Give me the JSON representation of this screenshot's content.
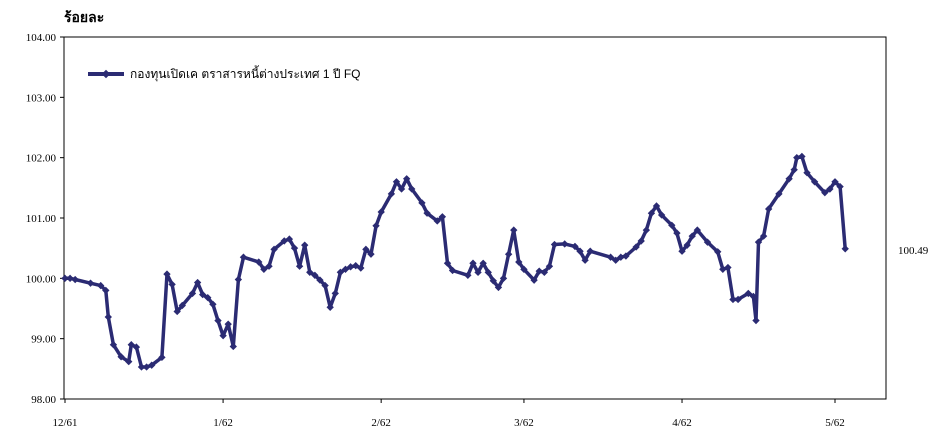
{
  "chart_data": {
    "type": "line",
    "ylabel": "ร้อยละ",
    "ylim": [
      98.0,
      104.0
    ],
    "yticks": [
      "104.00",
      "103.00",
      "102.00",
      "101.00",
      "100.00",
      "99.00",
      "98.00"
    ],
    "xlim": [
      0,
      161
    ],
    "xticks": [
      {
        "pos": 0,
        "label": "12/61"
      },
      {
        "pos": 31,
        "label": "1/62"
      },
      {
        "pos": 62,
        "label": "2/62"
      },
      {
        "pos": 90,
        "label": "3/62"
      },
      {
        "pos": 121,
        "label": "4/62"
      },
      {
        "pos": 151,
        "label": "5/62"
      }
    ],
    "grid": false,
    "legend_position": "top-left",
    "end_label": "100.49",
    "line_color": "#2b2b73",
    "series": [
      {
        "name": "กองทุนเปิดเค ตราสารหนี้ต่างประเทศ 1 ปี FQ",
        "points": [
          [
            0,
            100.0
          ],
          [
            1,
            100.0
          ],
          [
            2,
            99.98
          ],
          [
            5,
            99.92
          ],
          [
            7,
            99.88
          ],
          [
            8,
            99.8
          ],
          [
            8.5,
            99.36
          ],
          [
            9.5,
            98.9
          ],
          [
            11,
            98.7
          ],
          [
            12.5,
            98.62
          ],
          [
            13,
            98.9
          ],
          [
            14,
            98.86
          ],
          [
            15,
            98.53
          ],
          [
            16,
            98.53
          ],
          [
            17,
            98.56
          ],
          [
            19,
            98.69
          ],
          [
            20,
            100.07
          ],
          [
            21,
            99.9
          ],
          [
            22,
            99.45
          ],
          [
            23,
            99.55
          ],
          [
            25,
            99.75
          ],
          [
            26,
            99.93
          ],
          [
            27,
            99.73
          ],
          [
            28,
            99.68
          ],
          [
            29,
            99.57
          ],
          [
            30,
            99.3
          ],
          [
            31,
            99.05
          ],
          [
            32,
            99.24
          ],
          [
            33,
            98.87
          ],
          [
            34,
            99.98
          ],
          [
            35,
            100.35
          ],
          [
            38,
            100.27
          ],
          [
            39,
            100.15
          ],
          [
            40,
            100.2
          ],
          [
            41,
            100.48
          ],
          [
            43,
            100.62
          ],
          [
            44,
            100.65
          ],
          [
            45,
            100.5
          ],
          [
            46,
            100.2
          ],
          [
            47,
            100.55
          ],
          [
            48,
            100.1
          ],
          [
            49,
            100.05
          ],
          [
            50,
            99.97
          ],
          [
            51,
            99.88
          ],
          [
            52,
            99.52
          ],
          [
            53,
            99.75
          ],
          [
            54,
            100.1
          ],
          [
            55,
            100.15
          ],
          [
            56,
            100.19
          ],
          [
            57,
            100.21
          ],
          [
            58,
            100.17
          ],
          [
            59,
            100.48
          ],
          [
            60,
            100.4
          ],
          [
            61,
            100.87
          ],
          [
            62,
            101.1
          ],
          [
            64,
            101.4
          ],
          [
            65,
            101.6
          ],
          [
            66,
            101.48
          ],
          [
            67,
            101.65
          ],
          [
            68,
            101.48
          ],
          [
            70,
            101.25
          ],
          [
            71,
            101.08
          ],
          [
            73,
            100.95
          ],
          [
            74,
            101.02
          ],
          [
            75,
            100.25
          ],
          [
            76,
            100.13
          ],
          [
            79,
            100.05
          ],
          [
            80,
            100.25
          ],
          [
            81,
            100.1
          ],
          [
            82,
            100.25
          ],
          [
            83,
            100.1
          ],
          [
            84,
            99.96
          ],
          [
            85,
            99.85
          ],
          [
            86,
            100.0
          ],
          [
            87,
            100.4
          ],
          [
            88,
            100.8
          ],
          [
            89,
            100.27
          ],
          [
            90,
            100.15
          ],
          [
            92,
            99.97
          ],
          [
            93,
            100.12
          ],
          [
            94,
            100.1
          ],
          [
            95,
            100.2
          ],
          [
            96,
            100.56
          ],
          [
            98,
            100.57
          ],
          [
            100,
            100.53
          ],
          [
            101,
            100.45
          ],
          [
            102,
            100.3
          ],
          [
            103,
            100.45
          ],
          [
            107,
            100.35
          ],
          [
            108,
            100.3
          ],
          [
            109,
            100.35
          ],
          [
            110,
            100.37
          ],
          [
            112,
            100.52
          ],
          [
            113,
            100.62
          ],
          [
            114,
            100.8
          ],
          [
            115,
            101.08
          ],
          [
            116,
            101.2
          ],
          [
            117,
            101.05
          ],
          [
            119,
            100.88
          ],
          [
            120,
            100.75
          ],
          [
            121,
            100.45
          ],
          [
            122,
            100.55
          ],
          [
            123,
            100.7
          ],
          [
            124,
            100.8
          ],
          [
            126,
            100.6
          ],
          [
            128,
            100.44
          ],
          [
            129,
            100.15
          ],
          [
            130,
            100.18
          ],
          [
            131,
            99.65
          ],
          [
            132,
            99.65
          ],
          [
            134,
            99.75
          ],
          [
            135,
            99.7
          ],
          [
            135.5,
            99.3
          ],
          [
            136,
            100.6
          ],
          [
            137,
            100.7
          ],
          [
            138,
            101.15
          ],
          [
            140,
            101.4
          ],
          [
            142,
            101.65
          ],
          [
            143,
            101.8
          ],
          [
            143.5,
            102.0
          ],
          [
            144.5,
            102.02
          ],
          [
            145.5,
            101.75
          ],
          [
            147,
            101.6
          ],
          [
            149,
            101.42
          ],
          [
            150,
            101.48
          ],
          [
            151,
            101.6
          ],
          [
            152,
            101.52
          ],
          [
            153,
            100.49
          ]
        ]
      }
    ]
  }
}
